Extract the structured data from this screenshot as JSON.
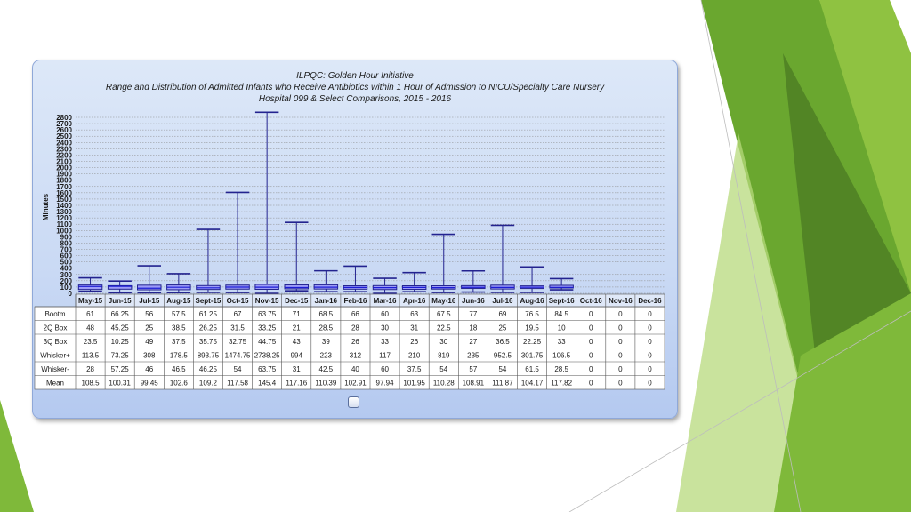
{
  "colors": {
    "box_fill": "#9d9cf7",
    "box_stroke": "#23238f",
    "median_line": "#1c1cd4",
    "green_dark": "#4e7f23",
    "green_mid": "#6aa72f",
    "green_light": "#8fc241",
    "green_pale": "#b7da7c"
  },
  "chart_data": {
    "type": "table",
    "title": "ILPQC: Golden Hour Initiative",
    "subtitle": "Range and Distribution of Admitted Infants who Receive Antibiotics within 1 Hour of Admission to NICU/Specialty Care Nursery",
    "subtitle2": "Hospital 099 & Select Comparisons, 2015 - 2016",
    "ylabel": "Minutes",
    "ylim": [
      0,
      2800
    ],
    "ytick_step": 100,
    "yticks": [
      "2800",
      "2700",
      "2600",
      "2500",
      "2400",
      "2300",
      "2200",
      "2100",
      "2000",
      "1900",
      "1800",
      "1700",
      "1600",
      "1500",
      "1400",
      "1300",
      "1200",
      "1100",
      "1000",
      "900",
      "800",
      "700",
      "600",
      "500",
      "400",
      "300",
      "200",
      "100",
      "0"
    ],
    "grid": true,
    "categories": [
      "May-15",
      "Jun-15",
      "Jul-15",
      "Aug-15",
      "Sept-15",
      "Oct-15",
      "Nov-15",
      "Dec-15",
      "Jan-16",
      "Feb-16",
      "Mar-16",
      "Apr-16",
      "May-16",
      "Jun-16",
      "Jul-16",
      "Aug-16",
      "Sept-16",
      "Oct-16",
      "Nov-16",
      "Dec-16"
    ],
    "series": [
      {
        "name": "Bootm",
        "values": [
          "61",
          "66.25",
          "56",
          "57.5",
          "61.25",
          "67",
          "63.75",
          "71",
          "68.5",
          "66",
          "60",
          "63",
          "67.5",
          "77",
          "69",
          "76.5",
          "84.5",
          "0",
          "0",
          "0"
        ]
      },
      {
        "name": "2Q Box",
        "values": [
          "48",
          "45.25",
          "25",
          "38.5",
          "26.25",
          "31.5",
          "33.25",
          "21",
          "28.5",
          "28",
          "30",
          "31",
          "22.5",
          "18",
          "25",
          "19.5",
          "10",
          "0",
          "0",
          "0"
        ]
      },
      {
        "name": "3Q Box",
        "values": [
          "23.5",
          "10.25",
          "49",
          "37.5",
          "35.75",
          "32.75",
          "44.75",
          "43",
          "39",
          "26",
          "33",
          "26",
          "30",
          "27",
          "36.5",
          "22.25",
          "33",
          "0",
          "0",
          "0"
        ]
      },
      {
        "name": "Whisker+",
        "values": [
          "113.5",
          "73.25",
          "308",
          "178.5",
          "893.75",
          "1474.75",
          "2738.25",
          "994",
          "223",
          "312",
          "117",
          "210",
          "819",
          "235",
          "952.5",
          "301.75",
          "106.5",
          "0",
          "0",
          "0"
        ]
      },
      {
        "name": "Whisker-",
        "values": [
          "28",
          "57.25",
          "46",
          "46.5",
          "46.25",
          "54",
          "63.75",
          "31",
          "42.5",
          "40",
          "60",
          "37.5",
          "54",
          "57",
          "54",
          "61.5",
          "28.5",
          "0",
          "0",
          "0"
        ]
      },
      {
        "name": "Mean",
        "values": [
          "108.5",
          "100.31",
          "99.45",
          "102.6",
          "109.2",
          "117.58",
          "145.4",
          "117.16",
          "110.39",
          "102.91",
          "97.94",
          "101.95",
          "110.28",
          "108.91",
          "111.87",
          "104.17",
          "117.82",
          "0",
          "0",
          "0"
        ]
      }
    ]
  }
}
